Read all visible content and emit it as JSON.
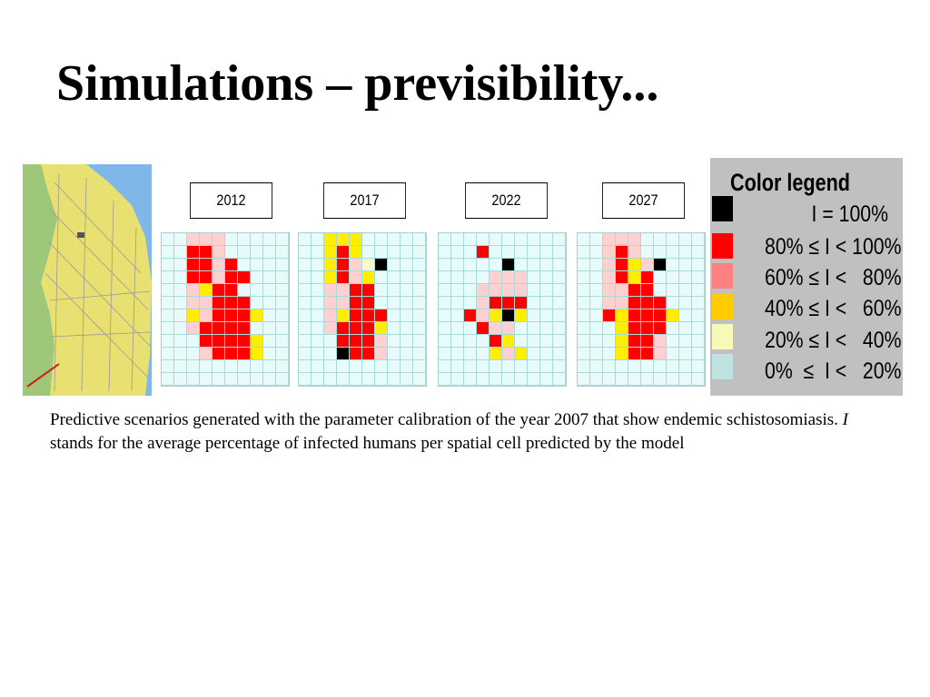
{
  "slide": {
    "title": "Simulations – previsibility...",
    "caption_before": "Predictive scenarios generated with the parameter calibration of the year 2007 that show endemic schistosomiasis. ",
    "caption_italic": "I",
    "caption_after": " stands for the average percentage of infected humans per spatial cell predicted by the model"
  },
  "legend": {
    "title": "Color legend",
    "items": [
      {
        "label": "I = 100%",
        "color": "#000000"
      },
      {
        "label": "80% ≤ I < 100%",
        "color": "#ff0000"
      },
      {
        "label": "60% ≤ I <   80%",
        "color": "#ff8080"
      },
      {
        "label": "40% ≤ I <   60%",
        "color": "#ffcc00"
      },
      {
        "label": "20% ≤ I <   40%",
        "color": "#f8f8b8"
      },
      {
        "label": "0%  ≤  I <   20%",
        "color": "#bfe3e3"
      }
    ]
  },
  "panels": [
    {
      "year": "2012",
      "rows": [
        "..PPP.....",
        "..RRP.....",
        "..RRPR....",
        "..RRPRR...",
        "..PYRR....",
        "..PPRRR...",
        "..YPRRRY..",
        "..PRRRR...",
        "...RRRRY..",
        "...PRRRY.."
      ]
    },
    {
      "year": "2017",
      "rows": [
        "..YYY.....",
        "..YRY.....",
        "..YRPBK...",
        "..YRPY....",
        "..PPRR....",
        "..PPRR....",
        "..PYRRR...",
        "..PRRRY...",
        "...RRRP...",
        "...KRRP..."
      ]
    },
    {
      "year": "2022",
      "rows": [
        "..........",
        "...R......",
        ".....K....",
        "....PPP...",
        "...PPPP...",
        "...PRRR...",
        "..RPYKY...",
        "...RPP....",
        "....RY....",
        "....YPY..."
      ]
    },
    {
      "year": "2027",
      "rows": [
        "..PPP.....",
        "..PRP.....",
        "..PRYPK...",
        "..PRYR....",
        "..PPRR....",
        "..PPRRR...",
        "..RYRRRY..",
        "...YRRR...",
        "...YRRP...",
        "...YRRP..."
      ]
    }
  ]
}
